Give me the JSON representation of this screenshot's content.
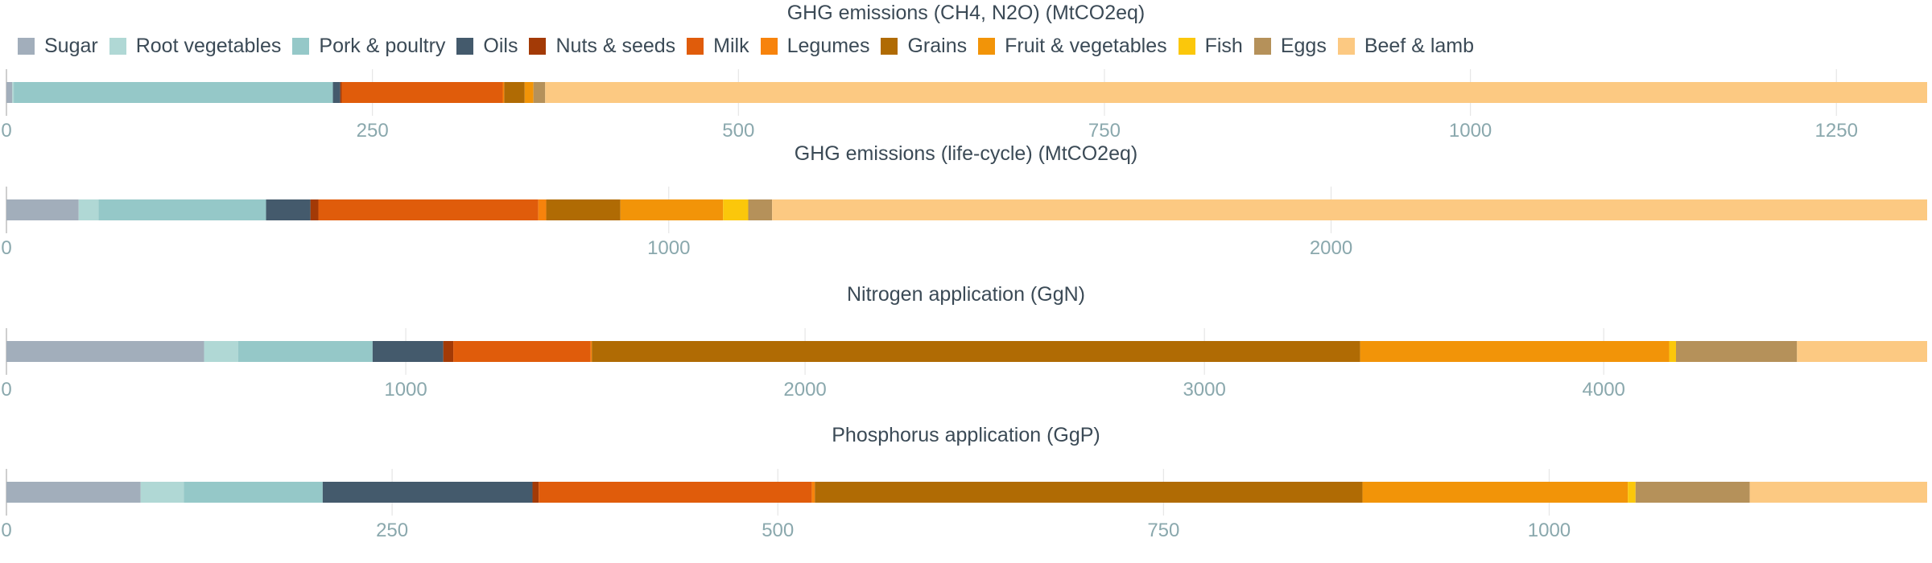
{
  "legend": [
    {
      "name": "Sugar",
      "color": "#a2aebb"
    },
    {
      "name": "Root vegetables",
      "color": "#b0d8d5"
    },
    {
      "name": "Pork & poultry",
      "color": "#95c8c8"
    },
    {
      "name": "Oils",
      "color": "#445a6c"
    },
    {
      "name": "Nuts & seeds",
      "color": "#a33a06"
    },
    {
      "name": "Milk",
      "color": "#e05c0b"
    },
    {
      "name": "Legumes",
      "color": "#f7830c"
    },
    {
      "name": "Grains",
      "color": "#b06b04"
    },
    {
      "name": "Fruit & vegetables",
      "color": "#f29408"
    },
    {
      "name": "Fish",
      "color": "#fbc70b"
    },
    {
      "name": "Eggs",
      "color": "#b5915a"
    },
    {
      "name": "Beef & lamb",
      "color": "#fcc982"
    }
  ],
  "chart_data": [
    {
      "type": "bar",
      "orientation": "horizontal-stacked",
      "title": "GHG emissions (CH4, N2O) (MtCO2eq)",
      "xlim": [
        0,
        1312
      ],
      "ticks": [
        0,
        250,
        500,
        750,
        1000,
        1250
      ],
      "tick_labels": [
        "0",
        "250",
        "500",
        "750",
        "1000",
        "1250"
      ],
      "series": [
        {
          "name": "Sugar",
          "value": 4
        },
        {
          "name": "Root vegetables",
          "value": 1
        },
        {
          "name": "Pork & poultry",
          "value": 218
        },
        {
          "name": "Oils",
          "value": 5
        },
        {
          "name": "Nuts & seeds",
          "value": 1
        },
        {
          "name": "Milk",
          "value": 110
        },
        {
          "name": "Legumes",
          "value": 1
        },
        {
          "name": "Grains",
          "value": 14
        },
        {
          "name": "Fruit & vegetables",
          "value": 6
        },
        {
          "name": "Fish",
          "value": 0
        },
        {
          "name": "Eggs",
          "value": 8
        },
        {
          "name": "Beef & lamb",
          "value": 944
        }
      ]
    },
    {
      "type": "bar",
      "orientation": "horizontal-stacked",
      "title": "GHG emissions (life-cycle) (MtCO2eq)",
      "xlim": [
        0,
        2900
      ],
      "ticks": [
        0,
        1000,
        2000
      ],
      "tick_labels": [
        "0",
        "1000",
        "2000"
      ],
      "series": [
        {
          "name": "Sugar",
          "value": 109
        },
        {
          "name": "Root vegetables",
          "value": 30
        },
        {
          "name": "Pork & poultry",
          "value": 253
        },
        {
          "name": "Oils",
          "value": 67
        },
        {
          "name": "Nuts & seeds",
          "value": 12
        },
        {
          "name": "Milk",
          "value": 332
        },
        {
          "name": "Legumes",
          "value": 12
        },
        {
          "name": "Grains",
          "value": 112
        },
        {
          "name": "Fruit & vegetables",
          "value": 155
        },
        {
          "name": "Fish",
          "value": 38
        },
        {
          "name": "Eggs",
          "value": 36
        },
        {
          "name": "Beef & lamb",
          "value": 1744
        }
      ]
    },
    {
      "type": "bar",
      "orientation": "horizontal-stacked",
      "title": "Nitrogen application (GgN)",
      "xlim": [
        0,
        4810
      ],
      "ticks": [
        0,
        1000,
        2000,
        3000,
        4000
      ],
      "tick_labels": [
        "0",
        "1000",
        "2000",
        "3000",
        "4000"
      ],
      "series": [
        {
          "name": "Sugar",
          "value": 495
        },
        {
          "name": "Root vegetables",
          "value": 85
        },
        {
          "name": "Pork & poultry",
          "value": 337
        },
        {
          "name": "Oils",
          "value": 177
        },
        {
          "name": "Nuts & seeds",
          "value": 25
        },
        {
          "name": "Milk",
          "value": 344
        },
        {
          "name": "Legumes",
          "value": 3
        },
        {
          "name": "Grains",
          "value": 1924
        },
        {
          "name": "Fruit & vegetables",
          "value": 774
        },
        {
          "name": "Fish",
          "value": 17
        },
        {
          "name": "Eggs",
          "value": 303
        },
        {
          "name": "Beef & lamb",
          "value": 326
        }
      ]
    },
    {
      "type": "bar",
      "orientation": "horizontal-stacked",
      "title": "Phosphorus application (GgP)",
      "xlim": [
        0,
        1245
      ],
      "ticks": [
        0,
        250,
        500,
        750,
        1000
      ],
      "tick_labels": [
        "0",
        "250",
        "500",
        "750",
        "1000"
      ],
      "series": [
        {
          "name": "Sugar",
          "value": 87
        },
        {
          "name": "Root vegetables",
          "value": 28
        },
        {
          "name": "Pork & poultry",
          "value": 90
        },
        {
          "name": "Oils",
          "value": 136
        },
        {
          "name": "Nuts & seeds",
          "value": 4
        },
        {
          "name": "Milk",
          "value": 177
        },
        {
          "name": "Legumes",
          "value": 2
        },
        {
          "name": "Grains",
          "value": 355
        },
        {
          "name": "Fruit & vegetables",
          "value": 172
        },
        {
          "name": "Fish",
          "value": 5
        },
        {
          "name": "Eggs",
          "value": 74
        },
        {
          "name": "Beef & lamb",
          "value": 115
        }
      ]
    }
  ]
}
